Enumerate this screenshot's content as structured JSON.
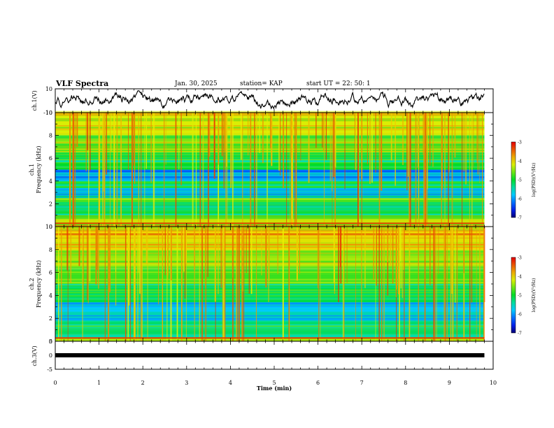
{
  "header": {
    "title": "VLF Spectra",
    "date": "Jan. 30, 2025",
    "station": "station= KAP",
    "start_ut": "start  UT  =   22: 50: 1"
  },
  "chart_data": [
    {
      "type": "line",
      "panel": "ch1-waveform",
      "ylabel": "ch.1(V)",
      "ylim": [
        -10,
        10
      ],
      "yticks": [
        "10",
        "-10"
      ],
      "xlim": [
        0,
        10
      ],
      "series": [
        {
          "values_desc": "noisy waveform fluctuating roughly between -7 and +7 V over 0–9.8 min",
          "color": "#000000"
        }
      ]
    },
    {
      "type": "heatmap",
      "panel": "ch1-spectrogram",
      "ylabel": "ch.1\nFrequency (kHz)",
      "ylim": [
        0,
        10
      ],
      "yticks": [
        "0",
        "2",
        "4",
        "6",
        "8",
        "10"
      ],
      "xlim": [
        0,
        10
      ],
      "data_extent_min": 9.8,
      "colorbar": {
        "label": "log(PSD)(V²/Hz)",
        "range": [
          -7,
          -3
        ],
        "ticks": [
          "-3",
          "-4",
          "-5",
          "-6",
          "-7"
        ]
      },
      "bands": [
        {
          "f": [
            0.0,
            0.3
          ],
          "level": -4.2
        },
        {
          "f": [
            0.3,
            1.0
          ],
          "level": -4.4
        },
        {
          "f": [
            1.0,
            2.2
          ],
          "level": -5.3
        },
        {
          "f": [
            2.2,
            2.5
          ],
          "level": -4.6
        },
        {
          "f": [
            2.5,
            3.4
          ],
          "level": -5.6
        },
        {
          "f": [
            3.4,
            4.0
          ],
          "level": -5.0
        },
        {
          "f": [
            4.0,
            5.0
          ],
          "level": -5.9
        },
        {
          "f": [
            5.0,
            6.5
          ],
          "level": -5.0
        },
        {
          "f": [
            6.5,
            8.0
          ],
          "level": -4.5
        },
        {
          "f": [
            8.0,
            10.0
          ],
          "level": -4.2
        }
      ]
    },
    {
      "type": "heatmap",
      "panel": "ch2-spectrogram",
      "ylabel": "ch.2\nFrequency (kHz)",
      "ylim": [
        0,
        10
      ],
      "yticks": [
        "0",
        "2",
        "4",
        "6",
        "8",
        "10"
      ],
      "xlim": [
        0,
        10
      ],
      "data_extent_min": 9.8,
      "colorbar": {
        "label": "log(PSD)(V²/Hz)",
        "range": [
          -7,
          -3
        ],
        "ticks": [
          "-3",
          "-4",
          "-5",
          "-6",
          "-7"
        ]
      },
      "bands": [
        {
          "f": [
            0.0,
            0.3
          ],
          "level": -4.2
        },
        {
          "f": [
            0.3,
            1.8
          ],
          "level": -5.2
        },
        {
          "f": [
            1.8,
            2.2
          ],
          "level": -5.6
        },
        {
          "f": [
            2.2,
            3.4
          ],
          "level": -5.8
        },
        {
          "f": [
            3.4,
            5.0
          ],
          "level": -5.1
        },
        {
          "f": [
            5.0,
            6.5
          ],
          "level": -4.8
        },
        {
          "f": [
            6.5,
            8.0
          ],
          "level": -4.4
        },
        {
          "f": [
            8.0,
            10.0
          ],
          "level": -4.0
        }
      ]
    },
    {
      "type": "line",
      "panel": "ch3-waveform",
      "ylabel": "ch.3(V)",
      "ylim": [
        -5,
        5
      ],
      "yticks": [
        "5",
        "0",
        "-5"
      ],
      "xlim": [
        0,
        10
      ],
      "series": [
        {
          "values_desc": "flat signal near 0 V",
          "constant": 0,
          "color": "#000000"
        }
      ]
    }
  ],
  "xaxis": {
    "label": "Time  (min)",
    "ticks": [
      "0",
      "1",
      "2",
      "3",
      "4",
      "5",
      "6",
      "7",
      "8",
      "9",
      "10"
    ]
  }
}
